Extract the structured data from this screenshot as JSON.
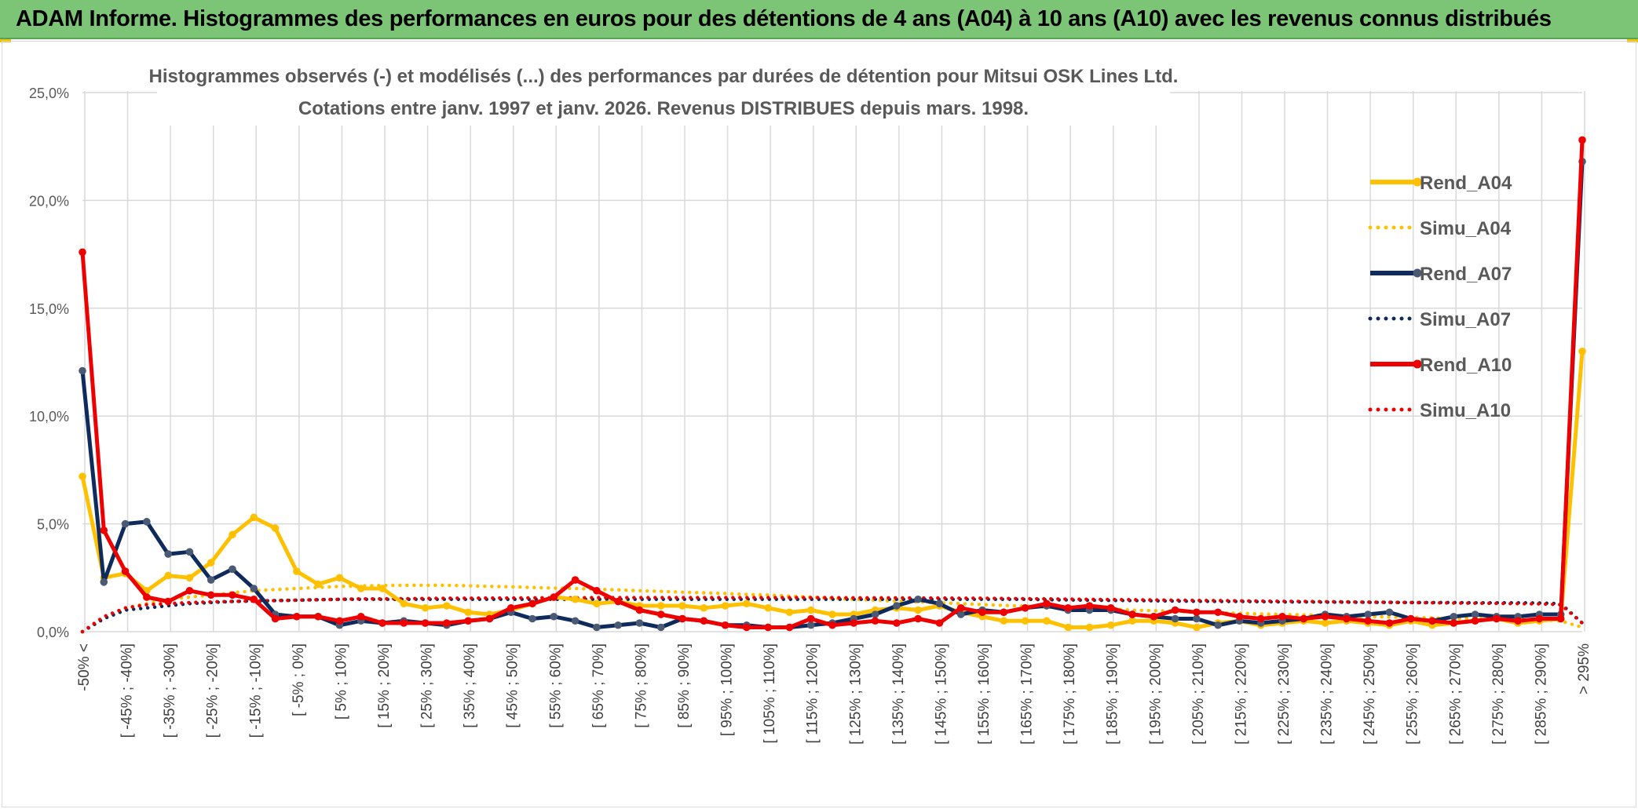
{
  "banner": {
    "title": "ADAM Informe. Histogrammes des performances en euros pour des détentions de 4 ans (A04) à 10 ans (A10) avec les revenus connus distribués"
  },
  "colors": {
    "banner": "#7cc576",
    "A04": "#ffc000",
    "A07": "#0f2a5c",
    "A10": "#ee0000",
    "grid": "#d9d9d9"
  },
  "chart_data": {
    "type": "line",
    "title": "Histogrammes observés (-) et modélisés (...) des performances par durées de détention pour Mitsui OSK Lines Ltd.",
    "subtitle": "Cotations entre janv. 1997 et janv. 2026. Revenus DISTRIBUES depuis mars. 1998.",
    "xlabel": "",
    "ylabel": "",
    "ylim": [
      0,
      25
    ],
    "yticks": [
      "0,0%",
      "5,0%",
      "10,0%",
      "15,0%",
      "20,0%",
      "25,0%"
    ],
    "grid": true,
    "legend_position": "right",
    "categories": [
      "-50% <",
      "[ -50% ; -45%]",
      "[ -45% ; -40%]",
      "[ -40% ; -35%]",
      "[ -35% ; -30%]",
      "[ -30% ; -25%]",
      "[ -25% ; -20%]",
      "[ -20% ; -15%]",
      "[ -15% ; -10%]",
      "[ -10% ; -5%]",
      "[ -5% ; 0%]",
      "[ 0% ; 5%]",
      "[ 5% ; 10%]",
      "[ 10% ; 15%]",
      "[ 15% ; 20%]",
      "[ 20% ; 25%]",
      "[ 25% ; 30%]",
      "[ 30% ; 35%]",
      "[ 35% ; 40%]",
      "[ 40% ; 45%]",
      "[ 45% ; 50%]",
      "[ 50% ; 55%]",
      "[ 55% ; 60%]",
      "[ 60% ; 65%]",
      "[ 65% ; 70%]",
      "[ 70% ; 75%]",
      "[ 75% ; 80%]",
      "[ 80% ; 85%]",
      "[ 85% ; 90%]",
      "[ 90% ; 95%]",
      "[ 95% ; 100%]",
      "[ 100% ; 105%]",
      "[ 105% ; 110%]",
      "[ 110% ; 115%]",
      "[ 115% ; 120%]",
      "[ 120% ; 125%]",
      "[ 125% ; 130%]",
      "[ 130% ; 135%]",
      "[ 135% ; 140%]",
      "[ 140% ; 145%]",
      "[ 145% ; 150%]",
      "[ 150% ; 155%]",
      "[ 155% ; 160%]",
      "[ 160% ; 165%]",
      "[ 165% ; 170%]",
      "[ 170% ; 175%]",
      "[ 175% ; 180%]",
      "[ 180% ; 185%]",
      "[ 185% ; 190%]",
      "[ 190% ; 195%]",
      "[ 195% ; 200%]",
      "[ 200% ; 205%]",
      "[ 205% ; 210%]",
      "[ 210% ; 215%]",
      "[ 215% ; 220%]",
      "[ 220% ; 225%]",
      "[ 225% ; 230%]",
      "[ 230% ; 235%]",
      "[ 235% ; 240%]",
      "[ 240% ; 245%]",
      "[ 245% ; 250%]",
      "[ 250% ; 255%]",
      "[ 255% ; 260%]",
      "[ 260% ; 265%]",
      "[ 265% ; 270%]",
      "[ 270% ; 275%]",
      "[ 275% ; 280%]",
      "[ 280% ; 285%]",
      "[ 285% ; 290%]",
      "[ 290% ; 295%]",
      "> 295%"
    ],
    "x_label_every": 2,
    "series": [
      {
        "name": "Rend_A04",
        "style": "solid",
        "color": "#ffc000",
        "values": [
          7.2,
          2.5,
          2.7,
          1.9,
          2.6,
          2.5,
          3.2,
          4.5,
          5.3,
          4.8,
          2.8,
          2.2,
          2.5,
          2.0,
          2.0,
          1.3,
          1.1,
          1.2,
          0.9,
          0.8,
          1.0,
          1.3,
          1.6,
          1.5,
          1.3,
          1.4,
          1.2,
          1.2,
          1.2,
          1.1,
          1.2,
          1.3,
          1.1,
          0.9,
          1.0,
          0.8,
          0.8,
          1.0,
          1.1,
          1.0,
          1.2,
          0.9,
          0.7,
          0.5,
          0.5,
          0.5,
          0.2,
          0.2,
          0.3,
          0.5,
          0.5,
          0.4,
          0.2,
          0.4,
          0.5,
          0.3,
          0.4,
          0.5,
          0.4,
          0.5,
          0.4,
          0.3,
          0.5,
          0.3,
          0.4,
          0.5,
          0.6,
          0.4,
          0.5,
          0.6,
          13.0
        ]
      },
      {
        "name": "Simu_A04",
        "style": "dotted",
        "color": "#ffc000",
        "values": [
          0.0,
          0.6,
          1.1,
          1.3,
          1.5,
          1.6,
          1.7,
          1.8,
          1.9,
          1.95,
          2.0,
          2.05,
          2.1,
          2.12,
          2.14,
          2.15,
          2.15,
          2.15,
          2.13,
          2.1,
          2.08,
          2.05,
          2.02,
          2.0,
          1.97,
          1.94,
          1.9,
          1.87,
          1.83,
          1.8,
          1.77,
          1.73,
          1.7,
          1.65,
          1.6,
          1.55,
          1.5,
          1.46,
          1.42,
          1.38,
          1.34,
          1.3,
          1.26,
          1.22,
          1.18,
          1.14,
          1.1,
          1.07,
          1.04,
          1.0,
          0.97,
          0.94,
          0.91,
          0.88,
          0.85,
          0.82,
          0.8,
          0.78,
          0.75,
          0.73,
          0.7,
          0.68,
          0.66,
          0.64,
          0.62,
          0.6,
          0.58,
          0.56,
          0.54,
          0.5,
          0.2
        ]
      },
      {
        "name": "Rend_A07",
        "style": "solid",
        "color": "#0f2a5c",
        "values": [
          12.1,
          2.3,
          5.0,
          5.1,
          3.6,
          3.7,
          2.4,
          2.9,
          2.0,
          0.8,
          0.7,
          0.7,
          0.3,
          0.5,
          0.4,
          0.5,
          0.4,
          0.3,
          0.5,
          0.6,
          0.9,
          0.6,
          0.7,
          0.5,
          0.2,
          0.3,
          0.4,
          0.2,
          0.6,
          0.5,
          0.3,
          0.3,
          0.2,
          0.2,
          0.3,
          0.4,
          0.6,
          0.8,
          1.2,
          1.5,
          1.3,
          0.8,
          1.0,
          0.9,
          1.1,
          1.2,
          1.0,
          1.0,
          1.0,
          0.8,
          0.7,
          0.6,
          0.6,
          0.3,
          0.5,
          0.4,
          0.5,
          0.6,
          0.8,
          0.7,
          0.8,
          0.9,
          0.6,
          0.5,
          0.7,
          0.8,
          0.7,
          0.7,
          0.8,
          0.8,
          21.8
        ]
      },
      {
        "name": "Simu_A07",
        "style": "dotted",
        "color": "#0f2a5c",
        "values": [
          0.0,
          0.6,
          1.0,
          1.1,
          1.2,
          1.3,
          1.35,
          1.4,
          1.42,
          1.44,
          1.46,
          1.48,
          1.5,
          1.5,
          1.5,
          1.5,
          1.5,
          1.5,
          1.5,
          1.5,
          1.5,
          1.5,
          1.5,
          1.5,
          1.5,
          1.5,
          1.5,
          1.5,
          1.5,
          1.5,
          1.5,
          1.5,
          1.5,
          1.5,
          1.5,
          1.5,
          1.5,
          1.5,
          1.5,
          1.5,
          1.5,
          1.5,
          1.5,
          1.5,
          1.5,
          1.48,
          1.47,
          1.46,
          1.45,
          1.44,
          1.43,
          1.42,
          1.41,
          1.4,
          1.4,
          1.39,
          1.38,
          1.38,
          1.37,
          1.37,
          1.36,
          1.36,
          1.35,
          1.35,
          1.35,
          1.34,
          1.34,
          1.34,
          1.33,
          1.3,
          0.4
        ]
      },
      {
        "name": "Rend_A10",
        "style": "solid",
        "color": "#ee0000",
        "values": [
          17.6,
          4.7,
          2.8,
          1.6,
          1.4,
          1.9,
          1.7,
          1.7,
          1.5,
          0.6,
          0.7,
          0.7,
          0.5,
          0.7,
          0.4,
          0.4,
          0.4,
          0.4,
          0.5,
          0.6,
          1.1,
          1.3,
          1.6,
          2.4,
          1.9,
          1.4,
          1.0,
          0.8,
          0.6,
          0.5,
          0.3,
          0.2,
          0.2,
          0.2,
          0.6,
          0.3,
          0.4,
          0.5,
          0.4,
          0.6,
          0.4,
          1.1,
          0.9,
          0.9,
          1.1,
          1.3,
          1.1,
          1.2,
          1.1,
          0.8,
          0.7,
          1.0,
          0.9,
          0.9,
          0.7,
          0.6,
          0.7,
          0.6,
          0.7,
          0.6,
          0.5,
          0.4,
          0.6,
          0.5,
          0.4,
          0.5,
          0.6,
          0.5,
          0.6,
          0.6,
          22.8
        ]
      },
      {
        "name": "Simu_A10",
        "style": "dotted",
        "color": "#ee0000",
        "values": [
          0.0,
          0.7,
          1.1,
          1.25,
          1.3,
          1.35,
          1.38,
          1.4,
          1.42,
          1.44,
          1.46,
          1.48,
          1.5,
          1.52,
          1.52,
          1.53,
          1.54,
          1.55,
          1.55,
          1.56,
          1.56,
          1.57,
          1.57,
          1.57,
          1.58,
          1.58,
          1.58,
          1.58,
          1.58,
          1.58,
          1.58,
          1.58,
          1.58,
          1.58,
          1.58,
          1.58,
          1.57,
          1.57,
          1.57,
          1.56,
          1.56,
          1.55,
          1.55,
          1.54,
          1.53,
          1.52,
          1.51,
          1.5,
          1.49,
          1.48,
          1.47,
          1.46,
          1.45,
          1.44,
          1.43,
          1.42,
          1.41,
          1.4,
          1.39,
          1.38,
          1.37,
          1.36,
          1.35,
          1.34,
          1.33,
          1.32,
          1.31,
          1.3,
          1.29,
          1.25,
          0.4
        ]
      }
    ]
  }
}
